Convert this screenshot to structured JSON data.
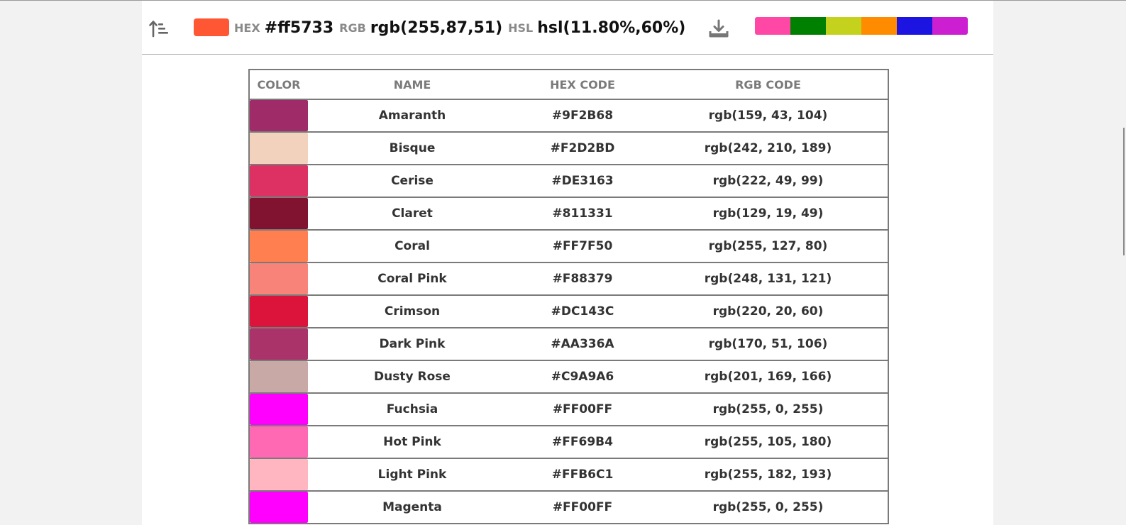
{
  "toolbar": {
    "sort_icon": "sort-ascending-icon",
    "current_color": "#ff5733",
    "hex_label": "HEX",
    "hex_value": "#ff5733",
    "rgb_label": "RGB",
    "rgb_value": "rgb(255,87,51)",
    "hsl_label": "HSL",
    "hsl_value": "hsl(11.80%,60%)",
    "download_icon": "download-icon",
    "palette": [
      "#ff47a6",
      "#008000",
      "#c4d11d",
      "#ff8c00",
      "#1c14e0",
      "#cc1fd1"
    ]
  },
  "table": {
    "headers": [
      "COLOR",
      "NAME",
      "HEX CODE",
      "RGB CODE"
    ],
    "rows": [
      {
        "color": "#9F2B68",
        "name": "Amaranth",
        "hex": "#9F2B68",
        "rgb": "rgb(159, 43, 104)"
      },
      {
        "color": "#F2D2BD",
        "name": "Bisque",
        "hex": "#F2D2BD",
        "rgb": "rgb(242, 210, 189)"
      },
      {
        "color": "#DE3163",
        "name": "Cerise",
        "hex": "#DE3163",
        "rgb": "rgb(222, 49, 99)"
      },
      {
        "color": "#811331",
        "name": "Claret",
        "hex": "#811331",
        "rgb": "rgb(129, 19, 49)"
      },
      {
        "color": "#FF7F50",
        "name": "Coral",
        "hex": "#FF7F50",
        "rgb": "rgb(255, 127, 80)"
      },
      {
        "color": "#F88379",
        "name": "Coral Pink",
        "hex": "#F88379",
        "rgb": "rgb(248, 131, 121)"
      },
      {
        "color": "#DC143C",
        "name": "Crimson",
        "hex": "#DC143C",
        "rgb": "rgb(220, 20, 60)"
      },
      {
        "color": "#AA336A",
        "name": "Dark Pink",
        "hex": "#AA336A",
        "rgb": "rgb(170, 51, 106)"
      },
      {
        "color": "#C9A9A6",
        "name": "Dusty Rose",
        "hex": "#C9A9A6",
        "rgb": "rgb(201, 169, 166)"
      },
      {
        "color": "#FF00FF",
        "name": "Fuchsia",
        "hex": "#FF00FF",
        "rgb": "rgb(255, 0, 255)"
      },
      {
        "color": "#FF69B4",
        "name": "Hot Pink",
        "hex": "#FF69B4",
        "rgb": "rgb(255, 105, 180)"
      },
      {
        "color": "#FFB6C1",
        "name": "Light Pink",
        "hex": "#FFB6C1",
        "rgb": "rgb(255, 182, 193)"
      },
      {
        "color": "#FF00FF",
        "name": "Magenta",
        "hex": "#FF00FF",
        "rgb": "rgb(255, 0, 255)"
      }
    ]
  }
}
